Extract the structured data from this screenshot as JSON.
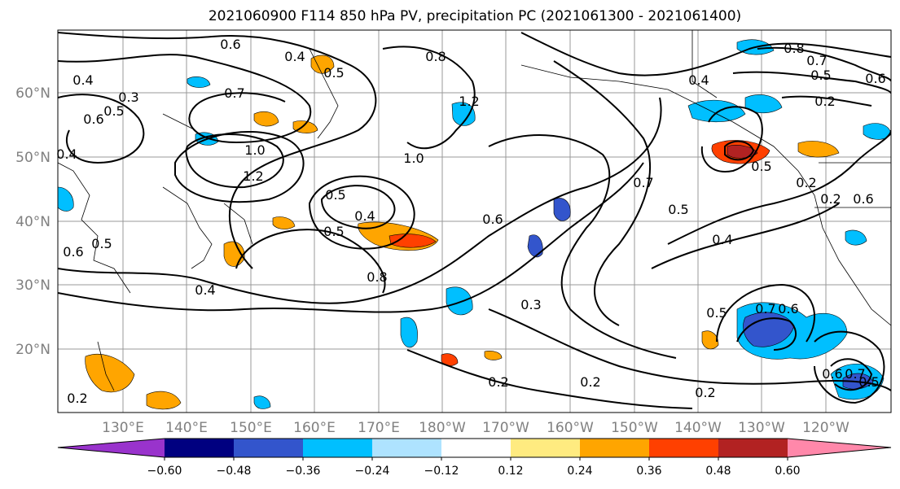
{
  "title": "2021060900 F114 850 hPa PV, precipitation PC (2021061300 - 2021061400)",
  "map": {
    "lat_ticks": [
      "60°N",
      "50°N",
      "40°N",
      "30°N",
      "20°N"
    ],
    "lon_ticks": [
      "130°E",
      "140°E",
      "150°E",
      "160°E",
      "170°E",
      "180°W",
      "170°W",
      "160°W",
      "150°W",
      "140°W",
      "130°W",
      "120°W"
    ],
    "contour_labels": [
      "0.6",
      "0.4",
      "0.8",
      "0.8",
      "0.7",
      "0.5",
      "0.6",
      "0.2",
      "0.3",
      "0.4",
      "0.6",
      "0.5",
      "0.4",
      "1.2",
      "1.0",
      "1.0",
      "1.2",
      "0.7",
      "0.5",
      "0.4",
      "0.8",
      "0.6",
      "0.4",
      "0.7",
      "0.5",
      "0.4",
      "0.3",
      "0.5",
      "0.7",
      "0.6",
      "0.5",
      "0.2",
      "0.2",
      "0.2",
      "0.2",
      "0.6",
      "0.7",
      "0.5",
      "0.2",
      "0.5",
      "0.2",
      "0.6",
      "0.5",
      "0.4",
      "0.5",
      "0.6"
    ]
  },
  "colorbar": {
    "colors": [
      "#9933cc",
      "#000080",
      "#3355cc",
      "#00bfff",
      "#aee3ff",
      "#ffffff",
      "#ffeb80",
      "#ffa500",
      "#ff4000",
      "#b22222",
      "#ff88aa"
    ],
    "tick_labels": [
      "−0.60",
      "−0.48",
      "−0.36",
      "−0.24",
      "−0.12",
      "0.12",
      "0.24",
      "0.36",
      "0.48",
      "0.60"
    ]
  }
}
